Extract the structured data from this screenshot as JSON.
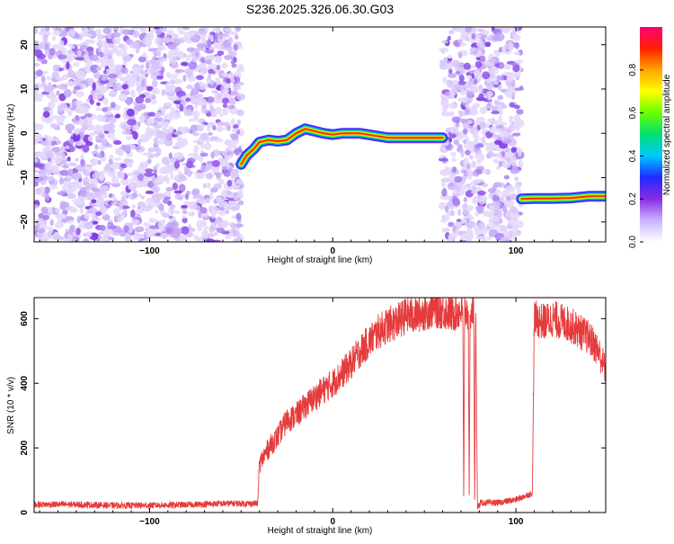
{
  "page_title": "S236.2025.326.06.30.G03",
  "colors": {
    "snr_line": "#e53b3b",
    "noise": "#8f3fe8",
    "frame": "#000000"
  },
  "chart_data": [
    {
      "type": "heatmap",
      "title": "S236.2025.326.06.30.G03",
      "xlabel": "Height of straight line (km)",
      "ylabel": "Frequency (Hz)",
      "xlim": [
        -163,
        149
      ],
      "ylim": [
        -24.5,
        24
      ],
      "xticks": [
        -100,
        0,
        100
      ],
      "yticks": [
        -20,
        -10,
        0,
        10,
        20
      ],
      "colorbar": {
        "label": "Normalized spectral amplitude",
        "range": [
          0,
          1
        ],
        "ticks": [
          0.0,
          0.2,
          0.4,
          0.6,
          0.8
        ],
        "colors": [
          "#ffffff",
          "#c8b4ff",
          "#8a2be2",
          "#1f2bff",
          "#00c8ff",
          "#00e070",
          "#66ff00",
          "#ffff00",
          "#ffa500",
          "#ff2000",
          "#ff0078"
        ]
      },
      "noise_regions": [
        [
          -163,
          -50
        ],
        [
          60,
          103
        ]
      ],
      "ridge_segments": [
        {
          "points": [
            [
              -50,
              -7
            ],
            [
              -47,
              -5
            ],
            [
              -43,
              -3.5
            ],
            [
              -40,
              -2
            ],
            [
              -35,
              -1.5
            ],
            [
              -30,
              -1.8
            ],
            [
              -25,
              -1.5
            ],
            [
              -20,
              0
            ],
            [
              -15,
              1
            ],
            [
              -10,
              0.5
            ],
            [
              -5,
              0
            ],
            [
              0,
              -0.3
            ],
            [
              5,
              0
            ],
            [
              15,
              0
            ],
            [
              30,
              -1
            ],
            [
              45,
              -1
            ],
            [
              60,
              -1
            ]
          ]
        },
        {
          "points": [
            [
              103,
              -14.8
            ],
            [
              110,
              -14.7
            ],
            [
              120,
              -14.7
            ],
            [
              130,
              -14.6
            ],
            [
              140,
              -14.2
            ],
            [
              149,
              -14.2
            ]
          ]
        }
      ]
    },
    {
      "type": "line",
      "xlabel": "Height of straight line (km)",
      "ylabel": "SNR (10 * v/v)",
      "xlim": [
        -163,
        149
      ],
      "ylim": [
        0,
        665
      ],
      "xticks": [
        -100,
        0,
        100
      ],
      "yticks": [
        0,
        200,
        400,
        600
      ],
      "series": [
        {
          "x": [
            -163,
            -140,
            -120,
            -100,
            -80,
            -60,
            -41,
            -40,
            -35,
            -30,
            -25,
            -20,
            -15,
            -10,
            -5,
            0,
            5,
            10,
            15,
            20,
            25,
            30,
            35,
            40,
            45,
            50,
            55,
            60,
            65,
            70,
            71,
            71.5,
            72,
            74,
            74.5,
            75,
            77,
            77.5,
            78,
            79,
            80,
            80.5,
            90,
            100,
            109,
            110,
            115,
            120,
            125,
            130,
            135,
            140,
            145,
            149
          ],
          "y": [
            25,
            25,
            22,
            22,
            24,
            28,
            28,
            150,
            200,
            235,
            285,
            300,
            330,
            355,
            380,
            400,
            430,
            460,
            500,
            530,
            560,
            580,
            590,
            610,
            610,
            620,
            630,
            625,
            615,
            625,
            620,
            20,
            620,
            620,
            20,
            620,
            620,
            20,
            620,
            20,
            20,
            30,
            30,
            40,
            60,
            600,
            590,
            600,
            590,
            580,
            560,
            540,
            500,
            440
          ]
        }
      ]
    }
  ]
}
